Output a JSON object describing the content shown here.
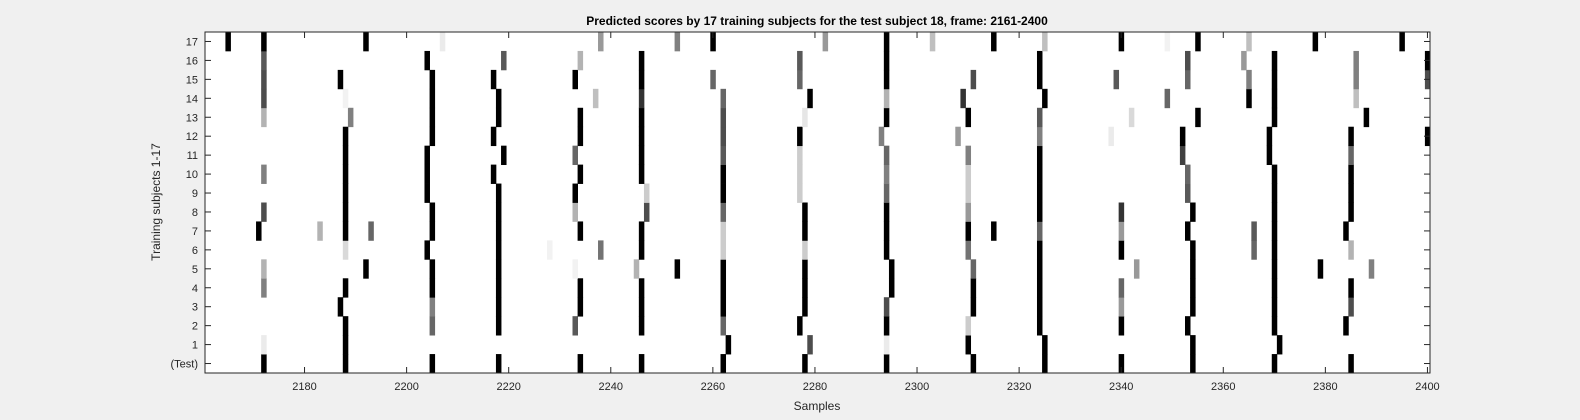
{
  "chart_data": {
    "type": "heatmap",
    "title": "Predicted scores by 17 training subjects for the test subject 18, frame: 2161-2400",
    "xlabel": "Samples",
    "ylabel": "Training subjects 1-17",
    "xlim": [
      2161,
      2400
    ],
    "xticks": [
      2180,
      2200,
      2220,
      2240,
      2260,
      2280,
      2300,
      2320,
      2340,
      2360,
      2380,
      2400
    ],
    "rows": [
      "(Test)",
      "1",
      "2",
      "3",
      "4",
      "5",
      "6",
      "7",
      "8",
      "9",
      "10",
      "11",
      "12",
      "13",
      "14",
      "15",
      "16",
      "17"
    ],
    "colormap": "gray (0 = black, 1 = white)",
    "background_value": 1,
    "cells": [
      {
        "row": "(Test)",
        "values": [
          [
            2172,
            0
          ],
          [
            2188,
            0
          ],
          [
            2205,
            0
          ],
          [
            2218,
            0
          ],
          [
            2234,
            0
          ],
          [
            2246,
            0
          ],
          [
            2262,
            0
          ],
          [
            2278,
            0
          ],
          [
            2294,
            0
          ],
          [
            2311,
            0
          ],
          [
            2325,
            0
          ],
          [
            2340,
            0
          ],
          [
            2354,
            0
          ],
          [
            2370,
            0
          ],
          [
            2385,
            0
          ]
        ]
      },
      {
        "row": "1",
        "values": [
          [
            2172,
            0.92
          ],
          [
            2188,
            0
          ],
          [
            2263,
            0
          ],
          [
            2279,
            0.3
          ],
          [
            2294,
            0.92
          ],
          [
            2310,
            0
          ],
          [
            2325,
            0
          ],
          [
            2354,
            0
          ],
          [
            2371,
            0
          ]
        ]
      },
      {
        "row": "2",
        "values": [
          [
            2188,
            0
          ],
          [
            2205,
            0.4
          ],
          [
            2218,
            0
          ],
          [
            2233,
            0.35
          ],
          [
            2246,
            0
          ],
          [
            2262,
            0.4
          ],
          [
            2277,
            0
          ],
          [
            2294,
            0
          ],
          [
            2310,
            0.8
          ],
          [
            2324,
            0
          ],
          [
            2340,
            0
          ],
          [
            2353,
            0
          ],
          [
            2370,
            0
          ],
          [
            2384,
            0
          ]
        ]
      },
      {
        "row": "3",
        "values": [
          [
            2187,
            0
          ],
          [
            2205,
            0.5
          ],
          [
            2218,
            0
          ],
          [
            2234,
            0
          ],
          [
            2246,
            0
          ],
          [
            2262,
            0
          ],
          [
            2278,
            0
          ],
          [
            2294,
            0.3
          ],
          [
            2311,
            0
          ],
          [
            2324,
            0
          ],
          [
            2340,
            0.6
          ],
          [
            2354,
            0
          ],
          [
            2370,
            0
          ],
          [
            2385,
            0.3
          ]
        ]
      },
      {
        "row": "4",
        "values": [
          [
            2172,
            0.5
          ],
          [
            2188,
            0
          ],
          [
            2205,
            0
          ],
          [
            2218,
            0
          ],
          [
            2234,
            0
          ],
          [
            2246,
            0
          ],
          [
            2262,
            0
          ],
          [
            2278,
            0
          ],
          [
            2295,
            0
          ],
          [
            2311,
            0
          ],
          [
            2324,
            0
          ],
          [
            2340,
            0.4
          ],
          [
            2354,
            0
          ],
          [
            2370,
            0
          ],
          [
            2385,
            0
          ]
        ]
      },
      {
        "row": "5",
        "values": [
          [
            2172,
            0.7
          ],
          [
            2192,
            0
          ],
          [
            2205,
            0
          ],
          [
            2218,
            0
          ],
          [
            2233,
            0.95
          ],
          [
            2245,
            0.7
          ],
          [
            2253,
            0
          ],
          [
            2262,
            0
          ],
          [
            2278,
            0
          ],
          [
            2295,
            0
          ],
          [
            2311,
            0.4
          ],
          [
            2324,
            0
          ],
          [
            2343,
            0.6
          ],
          [
            2354,
            0
          ],
          [
            2370,
            0
          ],
          [
            2379,
            0
          ],
          [
            2389,
            0.5
          ]
        ]
      },
      {
        "row": "6",
        "values": [
          [
            2188,
            0.85
          ],
          [
            2204,
            0
          ],
          [
            2218,
            0
          ],
          [
            2228,
            0.95
          ],
          [
            2238,
            0.45
          ],
          [
            2246,
            0
          ],
          [
            2262,
            0.8
          ],
          [
            2278,
            0.8
          ],
          [
            2294,
            0
          ],
          [
            2310,
            0.45
          ],
          [
            2324,
            0
          ],
          [
            2340,
            0
          ],
          [
            2354,
            0
          ],
          [
            2366,
            0.4
          ],
          [
            2370,
            0
          ],
          [
            2385,
            0.7
          ]
        ]
      },
      {
        "row": "7",
        "values": [
          [
            2171,
            0
          ],
          [
            2183,
            0.7
          ],
          [
            2188,
            0
          ],
          [
            2193,
            0.4
          ],
          [
            2205,
            0
          ],
          [
            2218,
            0
          ],
          [
            2234,
            0
          ],
          [
            2246,
            0
          ],
          [
            2262,
            0.8
          ],
          [
            2278,
            0
          ],
          [
            2294,
            0
          ],
          [
            2310,
            0
          ],
          [
            2315,
            0
          ],
          [
            2324,
            0.4
          ],
          [
            2340,
            0.6
          ],
          [
            2353,
            0
          ],
          [
            2366,
            0.35
          ],
          [
            2370,
            0
          ],
          [
            2384,
            0
          ]
        ]
      },
      {
        "row": "8",
        "values": [
          [
            2172,
            0.3
          ],
          [
            2188,
            0
          ],
          [
            2205,
            0
          ],
          [
            2218,
            0
          ],
          [
            2233,
            0.7
          ],
          [
            2247,
            0.3
          ],
          [
            2262,
            0.4
          ],
          [
            2278,
            0
          ],
          [
            2294,
            0
          ],
          [
            2310,
            0.6
          ],
          [
            2324,
            0
          ],
          [
            2340,
            0.2
          ],
          [
            2354,
            0
          ],
          [
            2370,
            0
          ],
          [
            2385,
            0
          ]
        ]
      },
      {
        "row": "9",
        "values": [
          [
            2188,
            0
          ],
          [
            2204,
            0
          ],
          [
            2218,
            0
          ],
          [
            2233,
            0
          ],
          [
            2247,
            0.8
          ],
          [
            2262,
            0
          ],
          [
            2277,
            0.8
          ],
          [
            2294,
            0.4
          ],
          [
            2310,
            0.8
          ],
          [
            2324,
            0
          ],
          [
            2353,
            0.35
          ],
          [
            2370,
            0
          ],
          [
            2385,
            0
          ]
        ]
      },
      {
        "row": "10",
        "values": [
          [
            2172,
            0.5
          ],
          [
            2188,
            0
          ],
          [
            2204,
            0
          ],
          [
            2217,
            0
          ],
          [
            2234,
            0
          ],
          [
            2246,
            0
          ],
          [
            2262,
            0
          ],
          [
            2277,
            0.8
          ],
          [
            2294,
            0.5
          ],
          [
            2310,
            0.8
          ],
          [
            2324,
            0
          ],
          [
            2353,
            0.4
          ],
          [
            2370,
            0
          ],
          [
            2385,
            0
          ]
        ]
      },
      {
        "row": "11",
        "values": [
          [
            2188,
            0
          ],
          [
            2204,
            0
          ],
          [
            2219,
            0
          ],
          [
            2233,
            0.4
          ],
          [
            2246,
            0
          ],
          [
            2262,
            0.35
          ],
          [
            2277,
            0.8
          ],
          [
            2294,
            0.4
          ],
          [
            2310,
            0.5
          ],
          [
            2324,
            0
          ],
          [
            2352,
            0.25
          ],
          [
            2369,
            0
          ],
          [
            2385,
            0.4
          ]
        ]
      },
      {
        "row": "12",
        "values": [
          [
            2188,
            0
          ],
          [
            2205,
            0
          ],
          [
            2217,
            0
          ],
          [
            2234,
            0
          ],
          [
            2246,
            0
          ],
          [
            2262,
            0.3
          ],
          [
            2277,
            0
          ],
          [
            2293,
            0.5
          ],
          [
            2308,
            0.6
          ],
          [
            2324,
            0.5
          ],
          [
            2338,
            0.92
          ],
          [
            2352,
            0
          ],
          [
            2369,
            0
          ],
          [
            2385,
            0
          ],
          [
            2400,
            0
          ]
        ]
      },
      {
        "row": "13",
        "values": [
          [
            2172,
            0.7
          ],
          [
            2189,
            0.5
          ],
          [
            2205,
            0
          ],
          [
            2218,
            0
          ],
          [
            2234,
            0
          ],
          [
            2246,
            0
          ],
          [
            2262,
            0.3
          ],
          [
            2278,
            0.9
          ],
          [
            2294,
            0
          ],
          [
            2310,
            0
          ],
          [
            2324,
            0.35
          ],
          [
            2342,
            0.85
          ],
          [
            2355,
            0
          ],
          [
            2370,
            0
          ],
          [
            2388,
            0
          ]
        ]
      },
      {
        "row": "14",
        "values": [
          [
            2172,
            0.3
          ],
          [
            2188,
            0.95
          ],
          [
            2205,
            0
          ],
          [
            2218,
            0
          ],
          [
            2237,
            0.75
          ],
          [
            2246,
            0.2
          ],
          [
            2262,
            0.4
          ],
          [
            2279,
            0
          ],
          [
            2294,
            0.7
          ],
          [
            2309,
            0.2
          ],
          [
            2325,
            0
          ],
          [
            2349,
            0.4
          ],
          [
            2365,
            0
          ],
          [
            2370,
            0
          ],
          [
            2386,
            0.75
          ]
        ]
      },
      {
        "row": "15",
        "values": [
          [
            2172,
            0.3
          ],
          [
            2187,
            0
          ],
          [
            2205,
            0
          ],
          [
            2217,
            0
          ],
          [
            2233,
            0
          ],
          [
            2246,
            0
          ],
          [
            2260,
            0.4
          ],
          [
            2277,
            0.4
          ],
          [
            2294,
            0
          ],
          [
            2311,
            0.3
          ],
          [
            2324,
            0
          ],
          [
            2339,
            0.35
          ],
          [
            2353,
            0.4
          ],
          [
            2365,
            0.5
          ],
          [
            2370,
            0
          ],
          [
            2386,
            0.5
          ],
          [
            2400,
            0.3
          ]
        ]
      },
      {
        "row": "16",
        "values": [
          [
            2172,
            0.35
          ],
          [
            2204,
            0
          ],
          [
            2219,
            0.35
          ],
          [
            2234,
            0.7
          ],
          [
            2246,
            0
          ],
          [
            2277,
            0.35
          ],
          [
            2294,
            0
          ],
          [
            2324,
            0
          ],
          [
            2353,
            0.3
          ],
          [
            2364,
            0.6
          ],
          [
            2370,
            0
          ],
          [
            2386,
            0.5
          ],
          [
            2400,
            0
          ]
        ]
      },
      {
        "row": "17",
        "values": [
          [
            2165,
            0
          ],
          [
            2172,
            0
          ],
          [
            2192,
            0
          ],
          [
            2207,
            0.92
          ],
          [
            2238,
            0.6
          ],
          [
            2253,
            0.5
          ],
          [
            2260,
            0
          ],
          [
            2282,
            0.6
          ],
          [
            2294,
            0
          ],
          [
            2303,
            0.75
          ],
          [
            2315,
            0
          ],
          [
            2325,
            0.75
          ],
          [
            2340,
            0
          ],
          [
            2349,
            0.95
          ],
          [
            2355,
            0
          ],
          [
            2365,
            0.75
          ],
          [
            2378,
            0
          ],
          [
            2395,
            0
          ]
        ]
      }
    ]
  }
}
